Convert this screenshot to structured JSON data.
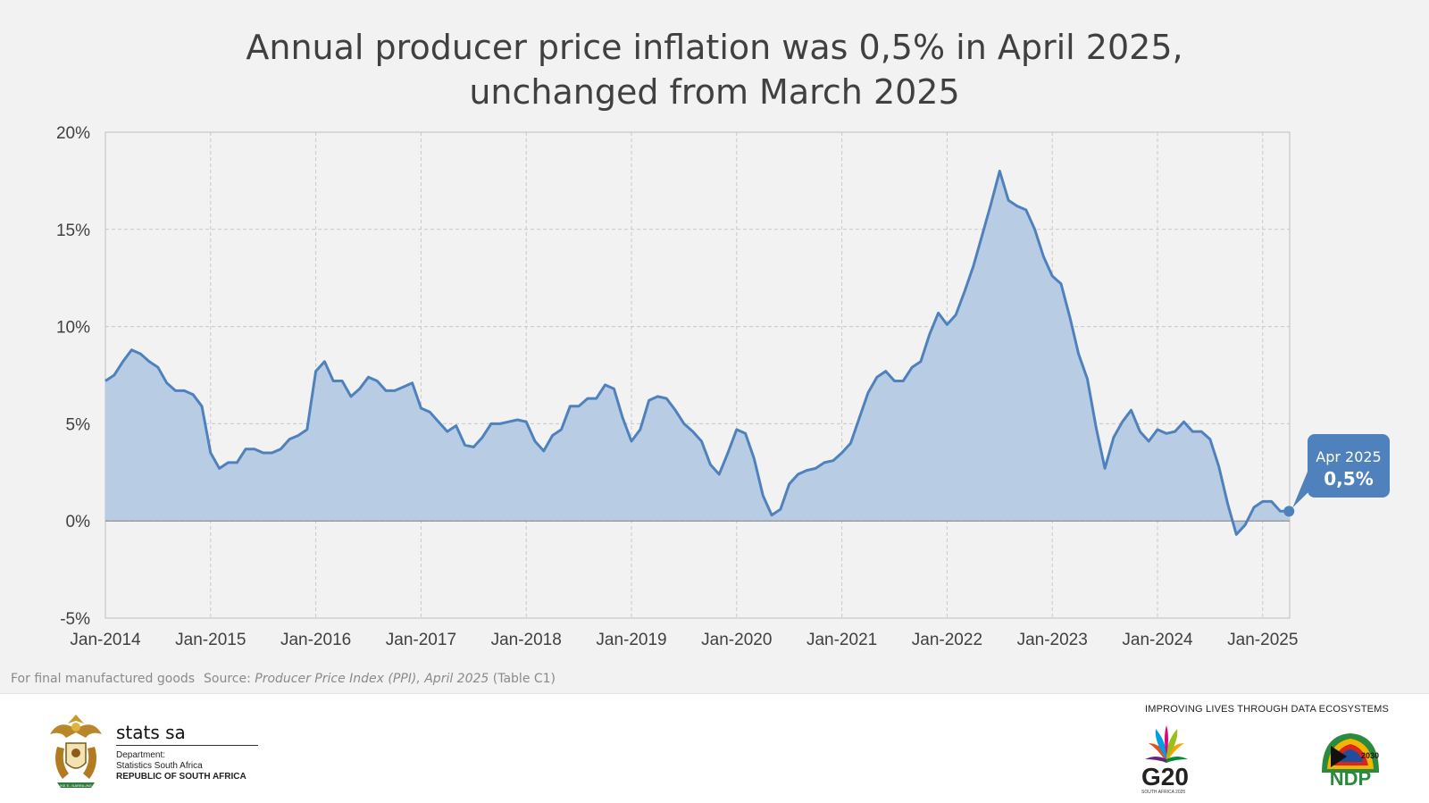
{
  "chart_data": {
    "type": "area",
    "title_lines": [
      "Annual producer price inflation was 0,5% in April 2025,",
      "unchanged from March 2025"
    ],
    "xlabel": "",
    "ylabel": "",
    "x_start": "Jan-2014",
    "x_end": "Apr-2025",
    "x_ticks": [
      "Jan-2014",
      "Jan-2015",
      "Jan-2016",
      "Jan-2017",
      "Jan-2018",
      "Jan-2019",
      "Jan-2020",
      "Jan-2021",
      "Jan-2022",
      "Jan-2023",
      "Jan-2024",
      "Jan-2025"
    ],
    "y_ticks": [
      "20%",
      "15%",
      "10%",
      "5%",
      "0%",
      "-5%"
    ],
    "ylim": [
      -5,
      20
    ],
    "grid": true,
    "series": [
      {
        "values": [
          7.2,
          7.5,
          8.2,
          8.8,
          8.6,
          8.2,
          7.9,
          7.1,
          6.7,
          6.7,
          6.5,
          5.9,
          3.5,
          2.7,
          3.0,
          3.0,
          3.7,
          3.7,
          3.5,
          3.5,
          3.7,
          4.2,
          4.4,
          4.7,
          7.7,
          8.2,
          7.2,
          7.2,
          6.4,
          6.8,
          7.4,
          7.2,
          6.7,
          6.7,
          6.9,
          7.1,
          5.8,
          5.6,
          5.1,
          4.6,
          4.9,
          3.9,
          3.8,
          4.3,
          5.0,
          5.0,
          5.1,
          5.2,
          5.1,
          4.1,
          3.6,
          4.4,
          4.7,
          5.9,
          5.9,
          6.3,
          6.3,
          7.0,
          6.8,
          5.3,
          4.1,
          4.7,
          6.2,
          6.4,
          6.3,
          5.7,
          5.0,
          4.6,
          4.1,
          2.9,
          2.4,
          3.5,
          4.7,
          4.5,
          3.2,
          1.3,
          0.3,
          0.6,
          1.9,
          2.4,
          2.6,
          2.7,
          3.0,
          3.1,
          3.5,
          4.0,
          5.3,
          6.6,
          7.4,
          7.7,
          7.2,
          7.2,
          7.9,
          8.2,
          9.6,
          10.7,
          10.1,
          10.6,
          11.8,
          13.1,
          14.7,
          16.3,
          18.0,
          16.5,
          16.2,
          16.0,
          15.0,
          13.6,
          12.6,
          12.2,
          10.5,
          8.6,
          7.3,
          4.8,
          2.7,
          4.3,
          5.1,
          5.7,
          4.6,
          4.1,
          4.7,
          4.5,
          4.6,
          5.1,
          4.6,
          4.6,
          4.2,
          2.8,
          0.9,
          -0.7,
          -0.2,
          0.7,
          1.0,
          1.0,
          0.5,
          0.5
        ]
      }
    ],
    "color": "#4f81bd",
    "fill_color": "#b8cce4",
    "annotation": {
      "label": "Apr 2025",
      "value": "0,5%",
      "color": "#4f81bd"
    }
  },
  "footer": {
    "note": "For final manufactured goods",
    "source_prefix": "Source: ",
    "source_title": "Producer Price Index (PPI), April 2025",
    "source_suffix": " (Table C1)",
    "tagline": "IMPROVING LIVES THROUGH DATA ECOSYSTEMS",
    "stats_name": "stats sa",
    "dept_line1": "Department:",
    "dept_line2": "Statistics South Africa",
    "dept_line3": "REPUBLIC OF SOUTH AFRICA",
    "g20_label": "G20",
    "g20_sub": "SOUTH AFRICA 2025",
    "ndp_label": "NDP",
    "ndp_year": "2030"
  },
  "icons": [
    "coat-of-arms-icon",
    "g20-logo-icon",
    "ndp-logo-icon"
  ]
}
